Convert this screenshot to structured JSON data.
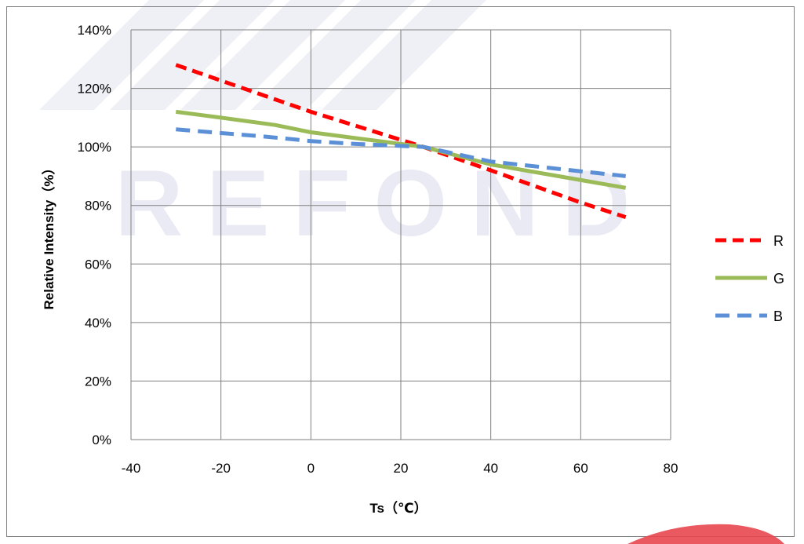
{
  "watermark": {
    "text": "REFOND"
  },
  "chart_data": {
    "type": "line",
    "title": "",
    "xlabel": "Ts（℃）",
    "ylabel": "Relative Intensity（%）",
    "xlim": [
      -40,
      80
    ],
    "ylim": [
      0,
      140
    ],
    "x_ticks": [
      -40,
      -20,
      0,
      20,
      40,
      60,
      80
    ],
    "y_ticks": [
      0,
      20,
      40,
      60,
      80,
      100,
      120,
      140
    ],
    "x_tick_labels": [
      "-40",
      "-20",
      "0",
      "20",
      "40",
      "60",
      "80"
    ],
    "y_tick_labels": [
      "0%",
      "20%",
      "40%",
      "60%",
      "80%",
      "100%",
      "120%",
      "140%"
    ],
    "y_unit": "%",
    "grid": true,
    "legend_position": "right",
    "series": [
      {
        "name": "R",
        "color": "#ff0000",
        "style": "dashed",
        "x": [
          -30,
          0,
          25,
          40,
          60,
          70
        ],
        "y": [
          128,
          112,
          100,
          92,
          81,
          76
        ]
      },
      {
        "name": "G",
        "color": "#9bbb59",
        "style": "solid",
        "x": [
          -30,
          -20,
          -8,
          0,
          10,
          25,
          40,
          55,
          70
        ],
        "y": [
          112,
          110,
          107.5,
          105,
          103,
          100,
          94,
          90,
          86
        ]
      },
      {
        "name": "B",
        "color": "#5b8fd6",
        "style": "dashed",
        "x": [
          -30,
          -10,
          0,
          10,
          25,
          40,
          55,
          70
        ],
        "y": [
          106,
          103.5,
          102,
          101,
          100,
          95,
          92.5,
          90
        ]
      }
    ]
  }
}
